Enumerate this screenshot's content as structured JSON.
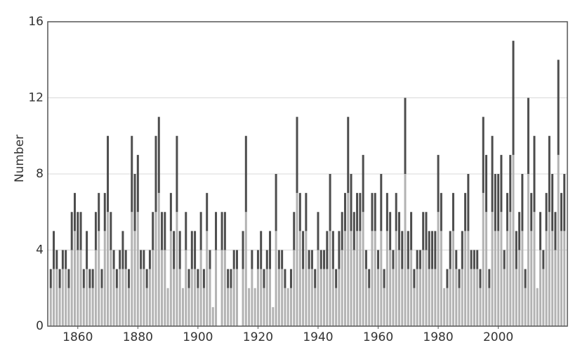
{
  "chart_data": {
    "type": "bar",
    "stacked": true,
    "y_label": "Number",
    "x": [
      1851,
      1852,
      1853,
      1854,
      1855,
      1856,
      1857,
      1858,
      1859,
      1860,
      1861,
      1862,
      1863,
      1864,
      1865,
      1866,
      1867,
      1868,
      1869,
      1870,
      1871,
      1872,
      1873,
      1874,
      1875,
      1876,
      1877,
      1878,
      1879,
      1880,
      1881,
      1882,
      1883,
      1884,
      1885,
      1886,
      1887,
      1888,
      1889,
      1890,
      1891,
      1892,
      1893,
      1894,
      1895,
      1896,
      1897,
      1898,
      1899,
      1900,
      1901,
      1902,
      1903,
      1904,
      1905,
      1906,
      1907,
      1908,
      1909,
      1910,
      1911,
      1912,
      1913,
      1914,
      1915,
      1916,
      1917,
      1918,
      1919,
      1920,
      1921,
      1922,
      1923,
      1924,
      1925,
      1926,
      1927,
      1928,
      1929,
      1930,
      1931,
      1932,
      1933,
      1934,
      1935,
      1936,
      1937,
      1938,
      1939,
      1940,
      1941,
      1942,
      1943,
      1944,
      1945,
      1946,
      1947,
      1948,
      1949,
      1950,
      1951,
      1952,
      1953,
      1954,
      1955,
      1956,
      1957,
      1958,
      1959,
      1960,
      1961,
      1962,
      1963,
      1964,
      1965,
      1966,
      1967,
      1968,
      1969,
      1970,
      1971,
      1972,
      1973,
      1974,
      1975,
      1976,
      1977,
      1978,
      1979,
      1980,
      1981,
      1982,
      1983,
      1984,
      1985,
      1986,
      1987,
      1988,
      1989,
      1990,
      1991,
      1992,
      1993,
      1994,
      1995,
      1996,
      1997,
      1998,
      1999,
      2000,
      2001,
      2002,
      2003,
      2004,
      2005,
      2006,
      2007,
      2008,
      2009,
      2010,
      2011,
      2012,
      2013,
      2014,
      2015,
      2016,
      2017,
      2018,
      2019,
      2020,
      2021,
      2022
    ],
    "series": [
      {
        "color": "#b3b3b3",
        "values": [
          2,
          3,
          3,
          2,
          3,
          3,
          2,
          4,
          5,
          4,
          4,
          2,
          3,
          2,
          2,
          4,
          5,
          2,
          5,
          6,
          4,
          3,
          2,
          3,
          3,
          3,
          2,
          6,
          5,
          6,
          3,
          3,
          2,
          3,
          4,
          6,
          7,
          4,
          4,
          2,
          5,
          3,
          6,
          3,
          2,
          4,
          2,
          3,
          3,
          2,
          4,
          2,
          5,
          3,
          1,
          4,
          0,
          4,
          4,
          2,
          2,
          3,
          3,
          0,
          3,
          6,
          2,
          3,
          2,
          3,
          3,
          2,
          3,
          3,
          1,
          5,
          3,
          3,
          2,
          2,
          2,
          4,
          7,
          5,
          3,
          5,
          3,
          3,
          2,
          4,
          3,
          3,
          3,
          5,
          3,
          2,
          3,
          4,
          5,
          7,
          5,
          4,
          5,
          5,
          6,
          3,
          2,
          5,
          5,
          3,
          5,
          2,
          5,
          4,
          3,
          5,
          4,
          3,
          8,
          3,
          4,
          2,
          3,
          3,
          4,
          4,
          3,
          3,
          3,
          6,
          5,
          2,
          2,
          3,
          5,
          3,
          2,
          3,
          5,
          5,
          3,
          3,
          3,
          2,
          7,
          6,
          2,
          6,
          5,
          5,
          6,
          3,
          5,
          6,
          9,
          3,
          4,
          5,
          2,
          8,
          5,
          6,
          2,
          4,
          3,
          5,
          6,
          5,
          4,
          9,
          5,
          5
        ]
      },
      {
        "color": "#4d4d4d",
        "values": [
          1,
          2,
          1,
          1,
          1,
          1,
          1,
          2,
          2,
          2,
          2,
          1,
          2,
          1,
          1,
          2,
          2,
          1,
          2,
          4,
          2,
          1,
          1,
          1,
          2,
          1,
          1,
          4,
          3,
          3,
          1,
          1,
          1,
          1,
          2,
          4,
          4,
          2,
          2,
          0,
          2,
          2,
          4,
          2,
          0,
          2,
          1,
          2,
          2,
          1,
          2,
          1,
          2,
          1,
          0,
          2,
          0,
          2,
          2,
          1,
          1,
          1,
          1,
          0,
          2,
          4,
          0,
          1,
          0,
          1,
          2,
          1,
          1,
          2,
          0,
          3,
          1,
          1,
          1,
          0,
          1,
          2,
          4,
          2,
          2,
          2,
          1,
          1,
          1,
          2,
          1,
          1,
          2,
          3,
          2,
          1,
          2,
          2,
          2,
          4,
          3,
          2,
          2,
          2,
          3,
          1,
          1,
          2,
          2,
          1,
          3,
          1,
          2,
          2,
          1,
          2,
          2,
          2,
          4,
          2,
          2,
          1,
          1,
          1,
          2,
          2,
          2,
          2,
          2,
          3,
          2,
          0,
          1,
          2,
          2,
          1,
          1,
          2,
          2,
          3,
          1,
          1,
          1,
          1,
          4,
          3,
          1,
          4,
          3,
          3,
          3,
          1,
          2,
          3,
          6,
          2,
          2,
          3,
          1,
          4,
          2,
          4,
          0,
          2,
          1,
          2,
          4,
          3,
          2,
          5,
          2,
          3
        ]
      }
    ],
    "xlim": [
      1850,
      2023
    ],
    "xticks": [
      1860,
      1880,
      1900,
      1920,
      1940,
      1960,
      1980,
      2000
    ],
    "ylim": [
      0,
      16
    ],
    "yticks": [
      0,
      4,
      8,
      12,
      16
    ],
    "grid": true
  }
}
